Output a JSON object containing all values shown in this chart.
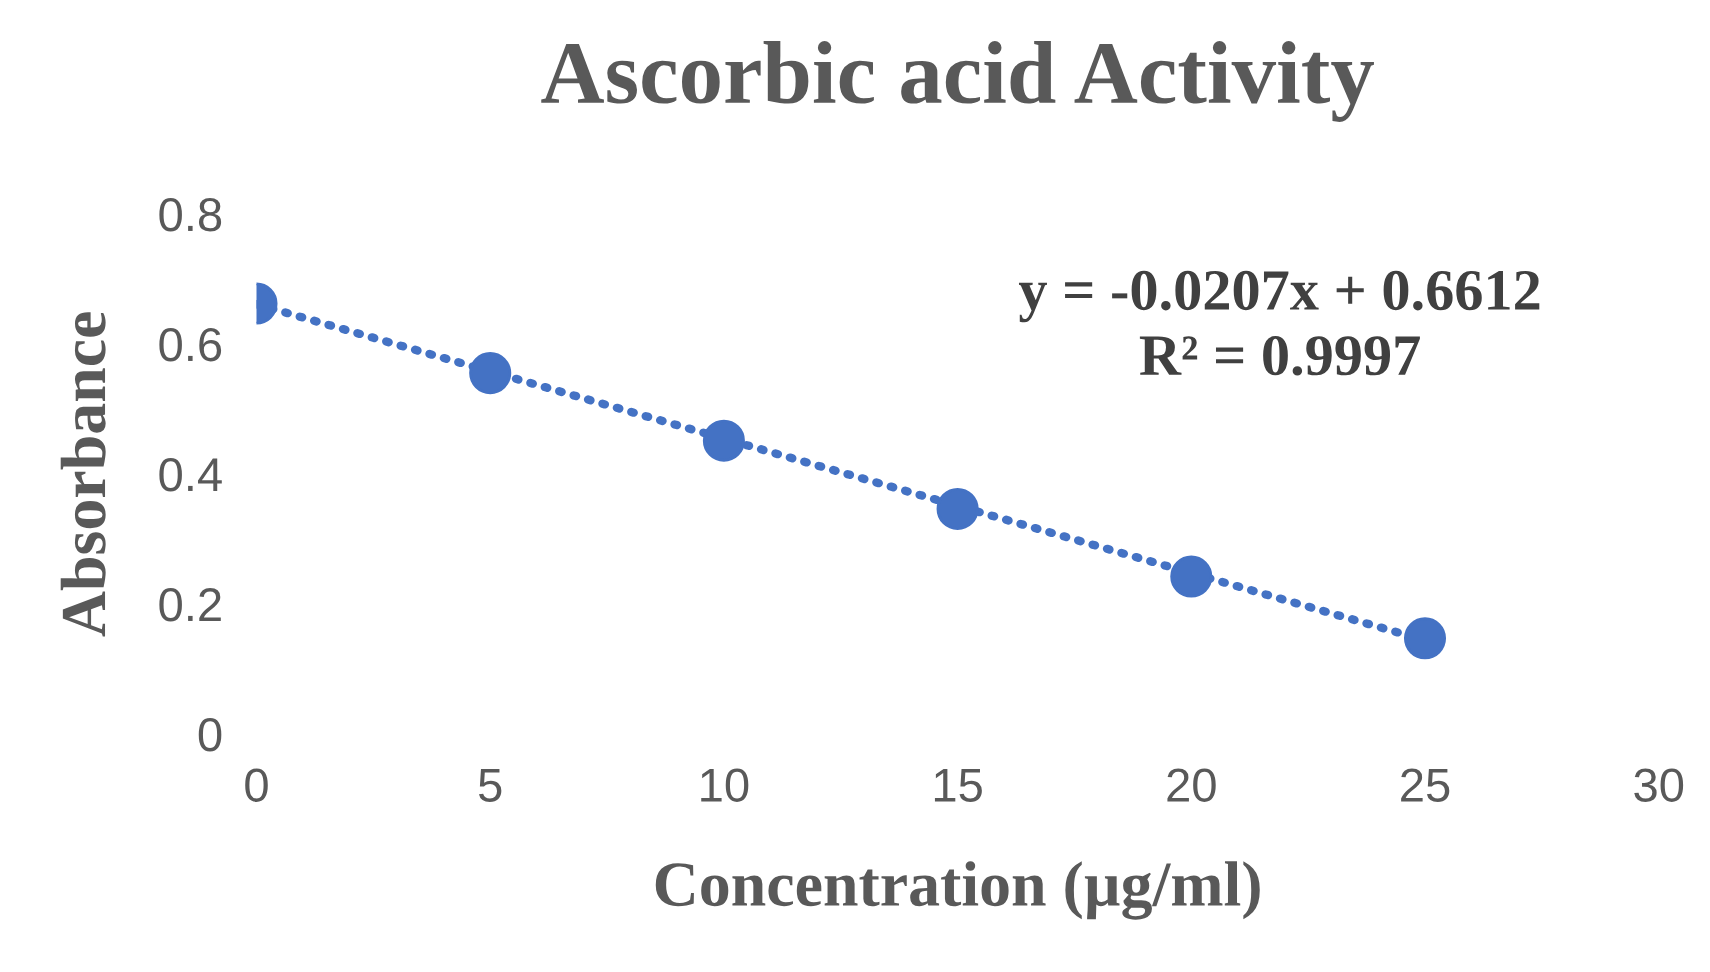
{
  "chart_data": {
    "type": "scatter",
    "title": "Ascorbic acid Activity",
    "xlabel": "Concentration (µg/ml)",
    "ylabel": "Absorbance",
    "x": [
      0,
      5,
      10,
      15,
      20,
      25
    ],
    "series": [
      {
        "type": "scatter",
        "color": "#4472c4",
        "marker": "circle",
        "values": [
          0.662,
          0.555,
          0.451,
          0.346,
          0.242,
          0.147
        ]
      },
      {
        "type": "line",
        "color": "#4472c4",
        "line_style": "dotted",
        "marker": "none",
        "x": [
          0,
          25
        ],
        "values": [
          0.661,
          0.144
        ]
      }
    ],
    "annotations": [
      "y = -0.0207x + 0.6612\nR² = 0.9997"
    ],
    "xlim": [
      0,
      30
    ],
    "xticks": [
      0,
      5,
      10,
      15,
      20,
      25,
      30
    ],
    "ylim": [
      0,
      0.8
    ],
    "yticks": [
      0,
      0.2,
      0.4,
      0.6,
      0.8
    ],
    "grid": false,
    "legend": false
  }
}
